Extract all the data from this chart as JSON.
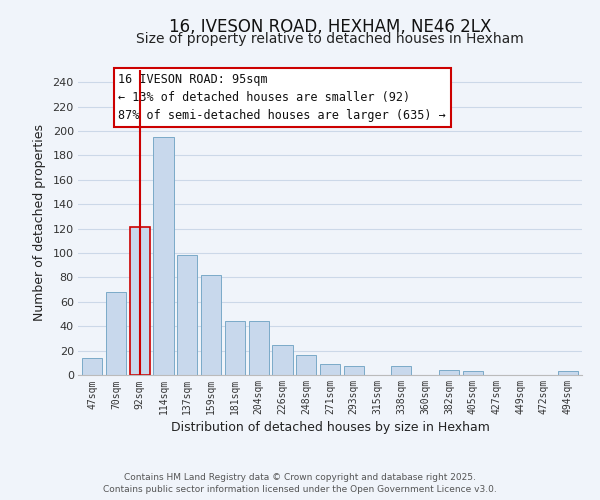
{
  "title": "16, IVESON ROAD, HEXHAM, NE46 2LX",
  "subtitle": "Size of property relative to detached houses in Hexham",
  "xlabel": "Distribution of detached houses by size in Hexham",
  "ylabel": "Number of detached properties",
  "bar_labels": [
    "47sqm",
    "70sqm",
    "92sqm",
    "114sqm",
    "137sqm",
    "159sqm",
    "181sqm",
    "204sqm",
    "226sqm",
    "248sqm",
    "271sqm",
    "293sqm",
    "315sqm",
    "338sqm",
    "360sqm",
    "382sqm",
    "405sqm",
    "427sqm",
    "449sqm",
    "472sqm",
    "494sqm"
  ],
  "bar_values": [
    14,
    68,
    121,
    195,
    98,
    82,
    44,
    44,
    25,
    16,
    9,
    7,
    0,
    7,
    0,
    4,
    3,
    0,
    0,
    0,
    3
  ],
  "bar_color": "#c8d8ec",
  "bar_edge_color": "#7aaac8",
  "highlight_bar_index": 2,
  "vline_color": "#cc0000",
  "vline_x": 2.0,
  "ylim": [
    0,
    250
  ],
  "yticks": [
    0,
    20,
    40,
    60,
    80,
    100,
    120,
    140,
    160,
    180,
    200,
    220,
    240
  ],
  "annotation_title": "16 IVESON ROAD: 95sqm",
  "annotation_line1": "← 13% of detached houses are smaller (92)",
  "annotation_line2": "87% of semi-detached houses are larger (635) →",
  "footer1": "Contains HM Land Registry data © Crown copyright and database right 2025.",
  "footer2": "Contains public sector information licensed under the Open Government Licence v3.0.",
  "grid_color": "#ccd8e8",
  "background_color": "#f0f4fa",
  "title_fontsize": 12,
  "subtitle_fontsize": 10,
  "ann_fontsize": 8.5,
  "footer_fontsize": 6.5,
  "xlabel_fontsize": 9,
  "ylabel_fontsize": 9
}
